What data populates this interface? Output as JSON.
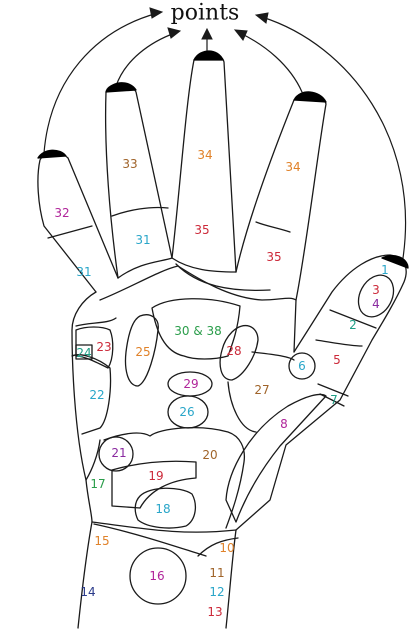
{
  "title": "points",
  "colors": {
    "outline": "#1a1a1a",
    "fingertip": "#000000",
    "orange": "#e0822a",
    "brown": "#a0642a",
    "magenta": "#b0259a",
    "cyan": "#2aa6c9",
    "teal": "#1f9f86",
    "red": "#cc2a3a",
    "green": "#2a9d4a",
    "purple": "#8a2aa0",
    "navy": "#2a3a8a"
  },
  "labels": {
    "l1": "1",
    "l2": "2",
    "l3": "3",
    "l4": "4",
    "l5": "5",
    "l6": "6",
    "l7": "7",
    "l8": "8",
    "l10": "10",
    "l11": "11",
    "l12": "12",
    "l13": "13",
    "l14": "14",
    "l15": "15",
    "l16": "16",
    "l17": "17",
    "l18": "18",
    "l19": "19",
    "l20": "20",
    "l21": "21",
    "l22": "22",
    "l23": "23",
    "l24": "24",
    "l25": "25",
    "l26": "26",
    "l27": "27",
    "l28": "28",
    "l29": "29",
    "l30": "30 & 38",
    "l31a": "31",
    "l31b": "31",
    "l32": "32",
    "l33": "33",
    "l34a": "34",
    "l34b": "34",
    "l35a": "35",
    "l35b": "35"
  }
}
